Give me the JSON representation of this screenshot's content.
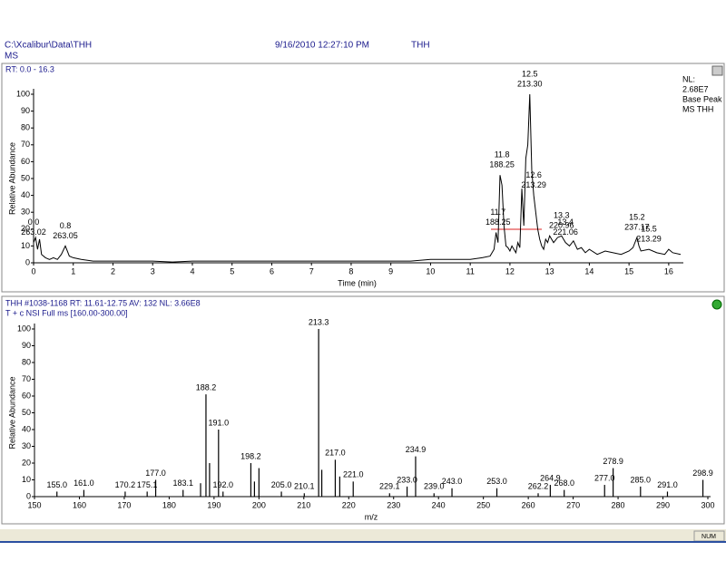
{
  "window": {
    "path": "C:\\Xcalibur\\Data\\THH",
    "datetime": "9/16/2010 12:27:10 PM",
    "sample": "THH",
    "mode": "MS",
    "status": "NUM"
  },
  "chart_data": [
    {
      "type": "line",
      "range_label": "RT: 0.0 - 16.3",
      "info": [
        "NL:",
        "2.68E7",
        "Base Peak",
        "MS THH"
      ],
      "xlabel": "Time (min)",
      "ylabel": "Relative Abundance",
      "color": "#000000",
      "xlim": [
        0,
        16.3
      ],
      "xticks": [
        0,
        1,
        2,
        3,
        4,
        5,
        6,
        7,
        8,
        9,
        10,
        11,
        12,
        13,
        14,
        15,
        16
      ],
      "ylim": [
        0,
        100
      ],
      "yticks": [
        0,
        10,
        20,
        30,
        40,
        50,
        60,
        70,
        80,
        90,
        100
      ],
      "x": [
        0,
        0.05,
        0.1,
        0.15,
        0.2,
        0.3,
        0.4,
        0.5,
        0.6,
        0.7,
        0.8,
        0.85,
        0.9,
        1,
        1.2,
        1.5,
        2,
        2.5,
        3,
        3.5,
        4,
        4.5,
        5,
        5.5,
        6,
        6.5,
        7,
        7.5,
        8,
        8.5,
        9,
        9.5,
        10,
        10.5,
        11,
        11.3,
        11.5,
        11.6,
        11.65,
        11.7,
        11.75,
        11.8,
        11.85,
        11.9,
        11.95,
        12,
        12.05,
        12.1,
        12.15,
        12.2,
        12.25,
        12.3,
        12.35,
        12.4,
        12.45,
        12.5,
        12.55,
        12.6,
        12.65,
        12.7,
        12.75,
        12.8,
        12.85,
        12.9,
        12.95,
        13,
        13.1,
        13.2,
        13.3,
        13.4,
        13.5,
        13.6,
        13.7,
        13.8,
        13.9,
        14,
        14.2,
        14.4,
        14.6,
        14.8,
        15,
        15.1,
        15.2,
        15.25,
        15.3,
        15.5,
        15.7,
        15.9,
        16,
        16.1,
        16.3
      ],
      "values": [
        12,
        15,
        8,
        14,
        5,
        3,
        2,
        3,
        2,
        5,
        10,
        7,
        4,
        3,
        2,
        1,
        1,
        1,
        1,
        0.5,
        1,
        1,
        1,
        1,
        1,
        1,
        1,
        1,
        1,
        1,
        1,
        1,
        2,
        2,
        2,
        3,
        4,
        8,
        18,
        12,
        52,
        46,
        22,
        10,
        9,
        7,
        10,
        8,
        6,
        12,
        9,
        44,
        22,
        62,
        70,
        100,
        55,
        40,
        30,
        20,
        14,
        10,
        8,
        14,
        12,
        16,
        12,
        15,
        16,
        12,
        10,
        13,
        8,
        9,
        6,
        8,
        5,
        7,
        6,
        5,
        7,
        9,
        15,
        10,
        7,
        8,
        6,
        5,
        8,
        6,
        5
      ],
      "annotations": [
        {
          "rt": "0.0",
          "mz": "263.02",
          "x": 0,
          "y": 12
        },
        {
          "rt": "0.8",
          "mz": "263.05",
          "x": 0.8,
          "y": 10
        },
        {
          "rt": "11.7",
          "mz": "188.25",
          "x": 11.7,
          "y": 18
        },
        {
          "rt": "11.8",
          "mz": "188.25",
          "x": 11.8,
          "y": 52
        },
        {
          "rt": "12.5",
          "mz": "213.30",
          "x": 12.5,
          "y": 100
        },
        {
          "rt": "12.6",
          "mz": "213.29",
          "x": 12.6,
          "y": 40
        },
        {
          "rt": "13.3",
          "mz": "220.96",
          "x": 13.3,
          "y": 16
        },
        {
          "rt": "13.4",
          "mz": "221.06",
          "x": 13.4,
          "y": 12
        },
        {
          "rt": "15.2",
          "mz": "237.17",
          "x": 15.2,
          "y": 15
        },
        {
          "rt": "15.5",
          "mz": "213.29",
          "x": 15.5,
          "y": 8
        }
      ]
    },
    {
      "type": "stick",
      "header": "THH #1038-1168  RT: 11.61-12.75  AV: 132  NL: 3.66E8",
      "filter": "T + c NSI Full ms [160.00-300.00]",
      "xlabel": "m/z",
      "ylabel": "Relative Abundance",
      "color": "#000000",
      "xlim": [
        150,
        300
      ],
      "xticks": [
        150,
        160,
        170,
        180,
        190,
        200,
        210,
        220,
        230,
        240,
        250,
        260,
        270,
        280,
        290,
        300
      ],
      "ylim": [
        0,
        100
      ],
      "yticks": [
        0,
        10,
        20,
        30,
        40,
        50,
        60,
        70,
        80,
        90,
        100
      ],
      "x": [
        155,
        161,
        170.2,
        175.1,
        177,
        183.1,
        187,
        188.2,
        189,
        191,
        192,
        198.2,
        199,
        200,
        205,
        210.1,
        213.3,
        214,
        217,
        218,
        221,
        229.1,
        233,
        234.9,
        239,
        243,
        253,
        262.2,
        264.9,
        268,
        277,
        278.9,
        285,
        291,
        298.9
      ],
      "values": [
        3,
        4,
        3,
        3,
        10,
        4,
        8,
        61,
        20,
        40,
        3,
        20,
        9,
        17,
        3,
        2,
        100,
        16,
        22,
        12,
        9,
        2,
        6,
        24,
        2,
        5,
        5,
        2,
        7,
        4,
        7,
        17,
        6,
        3,
        10
      ],
      "peak_labels": [
        "155.0",
        "161.0",
        "170.2",
        "175.1",
        "177.0",
        "183.1",
        null,
        "188.2",
        null,
        "191.0",
        "192.0",
        "198.2",
        null,
        null,
        "205.0",
        "210.1",
        "213.3",
        null,
        "217.0",
        null,
        "221.0",
        "229.1",
        "233.0",
        "234.9",
        "239.0",
        "243.0",
        "253.0",
        "262.2",
        "264.9",
        "268.0",
        "277.0",
        "278.9",
        "285.0",
        "291.0",
        "298.9"
      ]
    }
  ]
}
